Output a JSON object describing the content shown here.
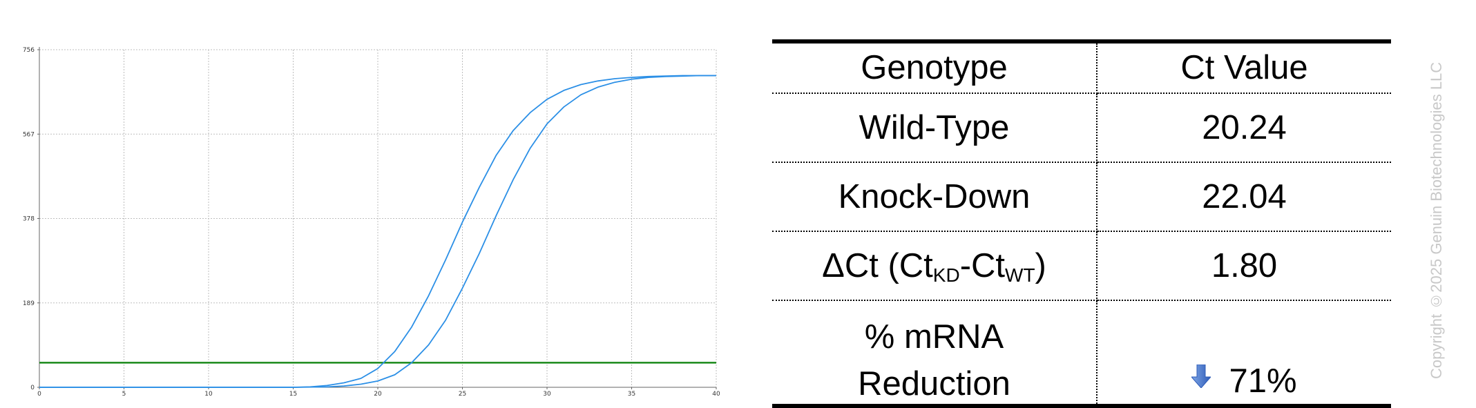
{
  "chart_data": {
    "type": "line",
    "title": "",
    "xlabel": "",
    "ylabel": "",
    "xlim": [
      0,
      40
    ],
    "ylim": [
      0,
      756
    ],
    "x_ticks": [
      0,
      5,
      10,
      15,
      20,
      25,
      30,
      35,
      40
    ],
    "y_ticks": [
      0,
      189,
      378,
      567,
      756
    ],
    "grid": true,
    "threshold": 55,
    "threshold_color": "#1a8a1a",
    "series_color": "#2b8fe6",
    "series": [
      {
        "x": [
          0,
          5,
          10,
          15,
          16,
          17,
          18,
          19,
          20,
          21,
          22,
          23,
          24,
          25,
          26,
          27,
          28,
          29,
          30,
          31,
          32,
          33,
          34,
          35,
          36,
          37,
          38,
          39,
          40
        ],
        "values": [
          0,
          0,
          0,
          0,
          1,
          4,
          10,
          20,
          42,
          80,
          135,
          205,
          285,
          370,
          448,
          520,
          575,
          615,
          645,
          665,
          678,
          686,
          691,
          694,
          696,
          697,
          698,
          698,
          698
        ]
      },
      {
        "x": [
          0,
          5,
          10,
          15,
          17,
          18,
          19,
          20,
          21,
          22,
          23,
          24,
          25,
          26,
          27,
          28,
          29,
          30,
          31,
          32,
          33,
          34,
          35,
          36,
          37,
          38,
          39,
          40
        ],
        "values": [
          0,
          0,
          0,
          0,
          1,
          3,
          7,
          14,
          28,
          55,
          95,
          150,
          222,
          300,
          385,
          465,
          535,
          590,
          628,
          655,
          672,
          683,
          690,
          694,
          696,
          697,
          698,
          698
        ]
      }
    ]
  },
  "table": {
    "header": {
      "genotype": "Genotype",
      "ct_value": "Ct Value"
    },
    "wild_type": {
      "label": "Wild-Type",
      "value": "20.24"
    },
    "knock_down": {
      "label": "Knock-Down",
      "value": "22.04"
    },
    "delta_ct": {
      "prefix": "ΔCt (Ct",
      "sub1": "KD",
      "middle": "-Ct",
      "sub2": "WT",
      "suffix": ")",
      "value": "1.80"
    },
    "reduction": {
      "label_line1": "% mRNA",
      "label_line2": "Reduction",
      "value": "71%",
      "icon": "down-arrow-icon",
      "icon_color": "#2f5cb8"
    }
  },
  "copyright": "Copyright ©2025 Genuin Biotechnologies LLC"
}
